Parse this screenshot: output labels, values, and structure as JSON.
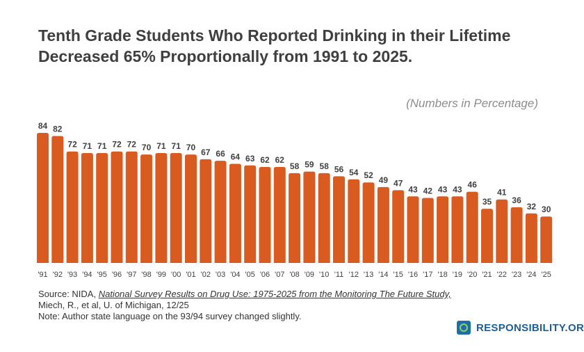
{
  "chart_data": {
    "type": "bar",
    "title": "Tenth Grade Students Who Reported Drinking in their Lifetime Decreased 65% Proportionally from 1991 to 2025.",
    "subtitle": "(Numbers in Percentage)",
    "categories": [
      "'91",
      "'92",
      "'93",
      "'94",
      "'95",
      "'96",
      "'97",
      "'98",
      "'99",
      "'00",
      "'01",
      "'02",
      "'03",
      "'04",
      "'05",
      "'06",
      "'07",
      "'08",
      "'09",
      "'10",
      "'11",
      "'12",
      "'13",
      "'14",
      "'15",
      "'16",
      "'17",
      "'18",
      "'19",
      "'20",
      "'21",
      "'22",
      "'23",
      "'24",
      "'25"
    ],
    "values": [
      84,
      82,
      72,
      71,
      71,
      72,
      72,
      70,
      71,
      71,
      70,
      67,
      66,
      64,
      63,
      62,
      62,
      58,
      59,
      58,
      56,
      54,
      52,
      49,
      47,
      43,
      42,
      43,
      43,
      46,
      35,
      41,
      36,
      32,
      30
    ],
    "ylim": [
      0,
      84
    ],
    "grid": false,
    "bar_color": "#d95b20"
  },
  "source": {
    "prefix": "Source: NIDA, ",
    "link": "National Survey Results on Drug Use: 1975-2025 from the Monitoring The Future Study,",
    "line2": "Miech, R., et al, U. of Michigan, 12/25",
    "note": "Note: Author state language on the 93/94 survey changed slightly."
  },
  "logo": {
    "text": "RESPONSIBILITY.ORG",
    "icon": "target-speech-bubble-icon"
  }
}
